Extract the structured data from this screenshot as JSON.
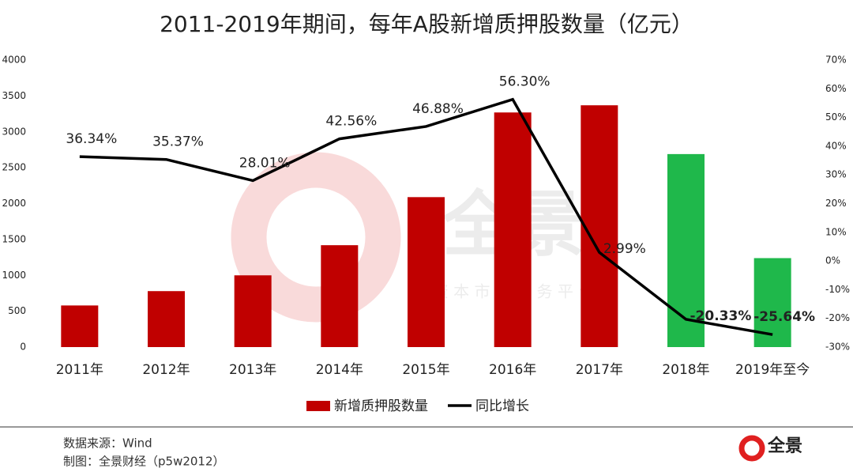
{
  "chart_data": {
    "type": "bar-line",
    "title": "2011-2019年期间，每年A股新增质押股数量（亿元）",
    "categories": [
      "2011年",
      "2012年",
      "2013年",
      "2014年",
      "2015年",
      "2016年",
      "2017年",
      "2018年",
      "2019年至今"
    ],
    "series": [
      {
        "name": "新增质押股数量",
        "type": "bar",
        "color": "#c00000",
        "colors": [
          "#c00000",
          "#c00000",
          "#c00000",
          "#c00000",
          "#c00000",
          "#c00000",
          "#c00000",
          "#1fb84b",
          "#1fb84b"
        ],
        "values": [
          580,
          780,
          1000,
          1420,
          2090,
          3270,
          3370,
          2690,
          1240
        ]
      },
      {
        "name": "同比增长",
        "type": "line",
        "axis": "y2",
        "color": "#000000",
        "values": [
          36.34,
          35.37,
          28.01,
          42.56,
          46.88,
          56.3,
          2.99,
          -20.33,
          -25.64
        ],
        "value_labels": [
          "36.34%",
          "35.37%",
          "28.01%",
          "42.56%",
          "46.88%",
          "56.30%",
          "2.99%",
          "-20.33%",
          "-25.64%"
        ]
      }
    ],
    "ylim": [
      0,
      4000
    ],
    "yticks": [
      0,
      500,
      1000,
      1500,
      2000,
      2500,
      3000,
      3500,
      4000
    ],
    "y2lim": [
      -30,
      70
    ],
    "y2ticks": [
      {
        "value": -30,
        "label": "-30%"
      },
      {
        "value": -20,
        "label": "-20%"
      },
      {
        "value": -10,
        "label": "-10%"
      },
      {
        "value": 0,
        "label": "0%"
      },
      {
        "value": 10,
        "label": "10%"
      },
      {
        "value": 20,
        "label": "20%"
      },
      {
        "value": 30,
        "label": "30%"
      },
      {
        "value": 40,
        "label": "40%"
      },
      {
        "value": 50,
        "label": "50%"
      },
      {
        "value": 60,
        "label": "60%"
      },
      {
        "value": 70,
        "label": "70%"
      }
    ],
    "legend": "bottom",
    "watermark": {
      "logo": "全景",
      "tagline": "资 本 市 场 服 务 平 台"
    },
    "source": "数据来源：Wind",
    "credit": "制图：全景财经（p5w2012）",
    "brand": "全景"
  }
}
